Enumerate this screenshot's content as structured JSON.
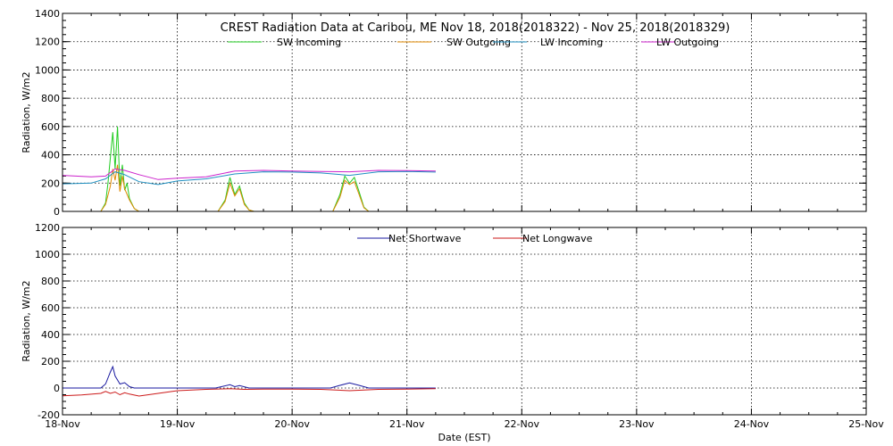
{
  "chart_data": [
    {
      "type": "line",
      "title": "CREST Radiation Data at Caribou, ME   Nov 18, 2018(2018322) - Nov 25, 2018(2018329)",
      "xlabel": "",
      "ylabel": "Radiation, W/m2",
      "ylim": [
        0,
        1400
      ],
      "yticks": [
        "0",
        "200",
        "400",
        "600",
        "800",
        "1000",
        "1200",
        "1400"
      ],
      "xlim": [
        "18-Nov",
        "25-Nov"
      ],
      "grid": true,
      "legend_position": "top",
      "series": [
        {
          "name": "SW Incoming",
          "color": "#22cc22",
          "x": [
            "18-Nov 08:00",
            "18-Nov 09:00",
            "18-Nov 09:30",
            "18-Nov 10:00",
            "18-Nov 10:30",
            "18-Nov 11:00",
            "18-Nov 11:30",
            "18-Nov 12:00",
            "18-Nov 12:30",
            "18-Nov 13:00",
            "18-Nov 13:30",
            "18-Nov 14:00",
            "18-Nov 15:00",
            "18-Nov 16:00",
            "19-Nov 08:30",
            "19-Nov 10:00",
            "19-Nov 11:00",
            "19-Nov 12:00",
            "19-Nov 13:00",
            "19-Nov 14:00",
            "19-Nov 15:00",
            "19-Nov 16:00",
            "20-Nov 08:30",
            "20-Nov 10:00",
            "20-Nov 11:00",
            "20-Nov 12:00",
            "20-Nov 13:00",
            "20-Nov 14:00",
            "20-Nov 15:00",
            "20-Nov 16:00"
          ],
          "y": [
            0,
            60,
            200,
            380,
            560,
            300,
            600,
            180,
            330,
            150,
            200,
            90,
            20,
            0,
            0,
            80,
            240,
            120,
            180,
            60,
            10,
            0,
            0,
            120,
            250,
            200,
            240,
            140,
            30,
            0
          ]
        },
        {
          "name": "SW Outgoing",
          "color": "#e08a00",
          "x": [
            "18-Nov 08:00",
            "18-Nov 09:00",
            "18-Nov 10:00",
            "18-Nov 10:30",
            "18-Nov 11:00",
            "18-Nov 11:30",
            "18-Nov 12:00",
            "18-Nov 12:30",
            "18-Nov 13:00",
            "18-Nov 14:00",
            "18-Nov 15:00",
            "18-Nov 16:00",
            "19-Nov 08:30",
            "19-Nov 10:00",
            "19-Nov 11:00",
            "19-Nov 12:00",
            "19-Nov 13:00",
            "19-Nov 14:00",
            "19-Nov 15:00",
            "19-Nov 16:00",
            "20-Nov 08:30",
            "20-Nov 10:00",
            "20-Nov 11:00",
            "20-Nov 12:00",
            "20-Nov 13:00",
            "20-Nov 14:00",
            "20-Nov 15:00",
            "20-Nov 16:00"
          ],
          "y": [
            0,
            50,
            180,
            300,
            220,
            330,
            140,
            250,
            160,
            80,
            20,
            0,
            0,
            70,
            200,
            110,
            160,
            50,
            10,
            0,
            0,
            100,
            220,
            190,
            210,
            120,
            25,
            0
          ]
        },
        {
          "name": "LW Incoming",
          "color": "#1e8fc0",
          "x": [
            "18-Nov 00:00",
            "18-Nov 06:00",
            "18-Nov 09:00",
            "18-Nov 11:00",
            "18-Nov 13:00",
            "18-Nov 16:00",
            "18-Nov 20:00",
            "19-Nov 00:00",
            "19-Nov 06:00",
            "19-Nov 12:00",
            "19-Nov 18:00",
            "20-Nov 00:00",
            "20-Nov 06:00",
            "20-Nov 12:00",
            "20-Nov 18:00",
            "21-Nov 00:00",
            "21-Nov 06:00"
          ],
          "y": [
            195,
            200,
            230,
            280,
            260,
            210,
            190,
            215,
            230,
            265,
            280,
            278,
            272,
            255,
            280,
            282,
            278
          ]
        },
        {
          "name": "LW Outgoing",
          "color": "#cc22cc",
          "x": [
            "18-Nov 00:00",
            "18-Nov 06:00",
            "18-Nov 09:00",
            "18-Nov 11:00",
            "18-Nov 13:00",
            "18-Nov 16:00",
            "18-Nov 20:00",
            "19-Nov 00:00",
            "19-Nov 06:00",
            "19-Nov 12:00",
            "19-Nov 18:00",
            "20-Nov 00:00",
            "20-Nov 06:00",
            "20-Nov 12:00",
            "20-Nov 18:00",
            "21-Nov 00:00",
            "21-Nov 06:00"
          ],
          "y": [
            255,
            245,
            250,
            300,
            290,
            260,
            225,
            235,
            245,
            285,
            290,
            285,
            282,
            280,
            290,
            288,
            285
          ]
        }
      ]
    },
    {
      "type": "line",
      "title": "",
      "xlabel": "Date (EST)",
      "ylabel": "Radiation, W/m2",
      "ylim": [
        -200,
        1200
      ],
      "yticks": [
        "-200",
        "0",
        "200",
        "400",
        "600",
        "800",
        "1000",
        "1200"
      ],
      "xlim": [
        "18-Nov",
        "25-Nov"
      ],
      "categories": [
        "18-Nov",
        "19-Nov",
        "20-Nov",
        "21-Nov",
        "22-Nov",
        "23-Nov",
        "24-Nov",
        "25-Nov"
      ],
      "grid": true,
      "legend_position": "top",
      "series": [
        {
          "name": "Net Shortwave",
          "color": "#1a1aa0",
          "x": [
            "18-Nov 00:00",
            "18-Nov 08:00",
            "18-Nov 09:00",
            "18-Nov 10:00",
            "18-Nov 10:30",
            "18-Nov 11:00",
            "18-Nov 11:30",
            "18-Nov 12:00",
            "18-Nov 13:00",
            "18-Nov 14:00",
            "18-Nov 15:00",
            "19-Nov 08:00",
            "19-Nov 11:00",
            "19-Nov 12:00",
            "19-Nov 13:00",
            "19-Nov 15:00",
            "20-Nov 08:00",
            "20-Nov 10:00",
            "20-Nov 12:00",
            "20-Nov 14:00",
            "20-Nov 16:00",
            "21-Nov 06:00"
          ],
          "y": [
            0,
            0,
            30,
            120,
            160,
            90,
            60,
            30,
            40,
            10,
            0,
            0,
            25,
            10,
            18,
            0,
            0,
            20,
            38,
            20,
            0,
            0
          ]
        },
        {
          "name": "Net Longwave",
          "color": "#cc1a1a",
          "x": [
            "18-Nov 00:00",
            "18-Nov 04:00",
            "18-Nov 08:00",
            "18-Nov 09:00",
            "18-Nov 10:00",
            "18-Nov 11:00",
            "18-Nov 12:00",
            "18-Nov 13:00",
            "18-Nov 14:00",
            "18-Nov 16:00",
            "18-Nov 20:00",
            "19-Nov 00:00",
            "19-Nov 06:00",
            "19-Nov 11:00",
            "19-Nov 14:00",
            "19-Nov 18:00",
            "20-Nov 00:00",
            "20-Nov 06:00",
            "20-Nov 12:00",
            "20-Nov 18:00",
            "21-Nov 00:00",
            "21-Nov 06:00"
          ],
          "y": [
            -58,
            -52,
            -40,
            -25,
            -40,
            -30,
            -50,
            -35,
            -45,
            -60,
            -40,
            -20,
            -10,
            -5,
            -10,
            -8,
            -8,
            -10,
            -20,
            -10,
            -8,
            -5
          ]
        }
      ]
    }
  ]
}
